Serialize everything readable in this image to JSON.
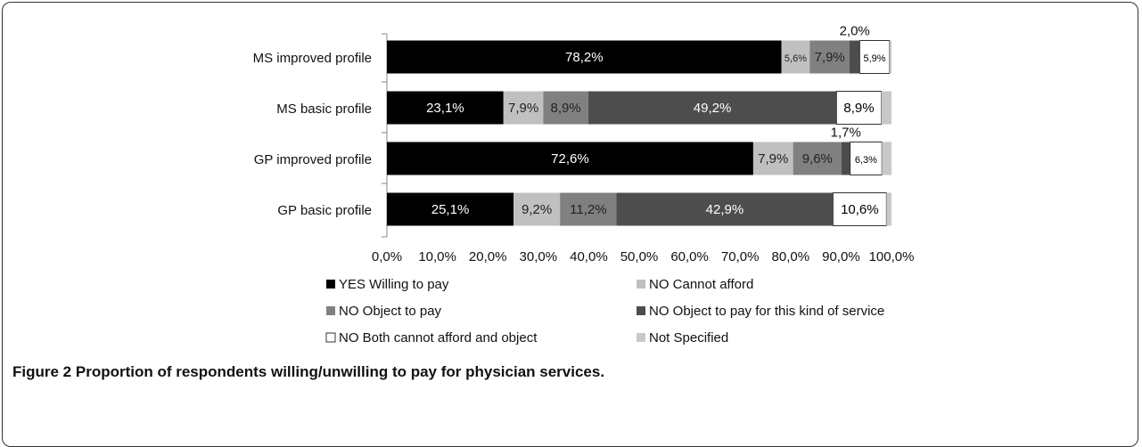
{
  "caption": {
    "label": "Figure 2",
    "text": "Proportion of respondents willing/unwilling to pay for physician services."
  },
  "chart_data": {
    "type": "bar",
    "orientation": "horizontal",
    "stacked": true,
    "categories": [
      "MS improved profile",
      "MS basic profile",
      "GP improved profile",
      "GP basic profile"
    ],
    "xlim": [
      0,
      100
    ],
    "x_ticks": [
      "0,0%",
      "10,0%",
      "20,0%",
      "30,0%",
      "40,0%",
      "50,0%",
      "60,0%",
      "70,0%",
      "80,0%",
      "90,0%",
      "100,0%"
    ],
    "legend_position": "bottom",
    "series": [
      {
        "name": "YES Willing to pay",
        "color": "#000000",
        "text_color": "#ffffff",
        "values": [
          78.2,
          23.1,
          72.6,
          25.1
        ],
        "labels": [
          "78,2%",
          "23,1%",
          "72,6%",
          "25,1%"
        ]
      },
      {
        "name": "NO Cannot afford",
        "color": "#c0c0c0",
        "text_color": "#222222",
        "values": [
          5.6,
          7.9,
          7.9,
          9.2
        ],
        "labels": [
          "5,6%",
          "7,9%",
          "7,9%",
          "9,2%"
        ]
      },
      {
        "name": "NO Object to pay",
        "color": "#808080",
        "text_color": "#222222",
        "values": [
          7.9,
          8.9,
          9.6,
          11.2
        ],
        "labels": [
          "7,9%",
          "8,9%",
          "9,6%",
          "11,2%"
        ]
      },
      {
        "name": "NO Object to pay for this kind of service",
        "color": "#4d4d4d",
        "text_color": "#ffffff",
        "values": [
          2.0,
          49.2,
          1.7,
          42.9
        ],
        "labels": [
          "2,0%",
          "49,2%",
          "1,7%",
          "42,9%"
        ]
      },
      {
        "name": "NO Both cannot afford and object",
        "color": "#ffffff",
        "text_color": "#000000",
        "values": [
          5.9,
          8.9,
          6.3,
          10.6
        ],
        "labels": [
          "5,9%",
          "8,9%",
          "6,3%",
          "10,6%"
        ]
      },
      {
        "name": "Not Specified",
        "color": "#c8c8c8",
        "text_color": "#222222",
        "values": [
          0.4,
          2.0,
          1.9,
          1.0
        ],
        "labels": [
          "",
          "",
          "",
          ""
        ]
      }
    ]
  }
}
